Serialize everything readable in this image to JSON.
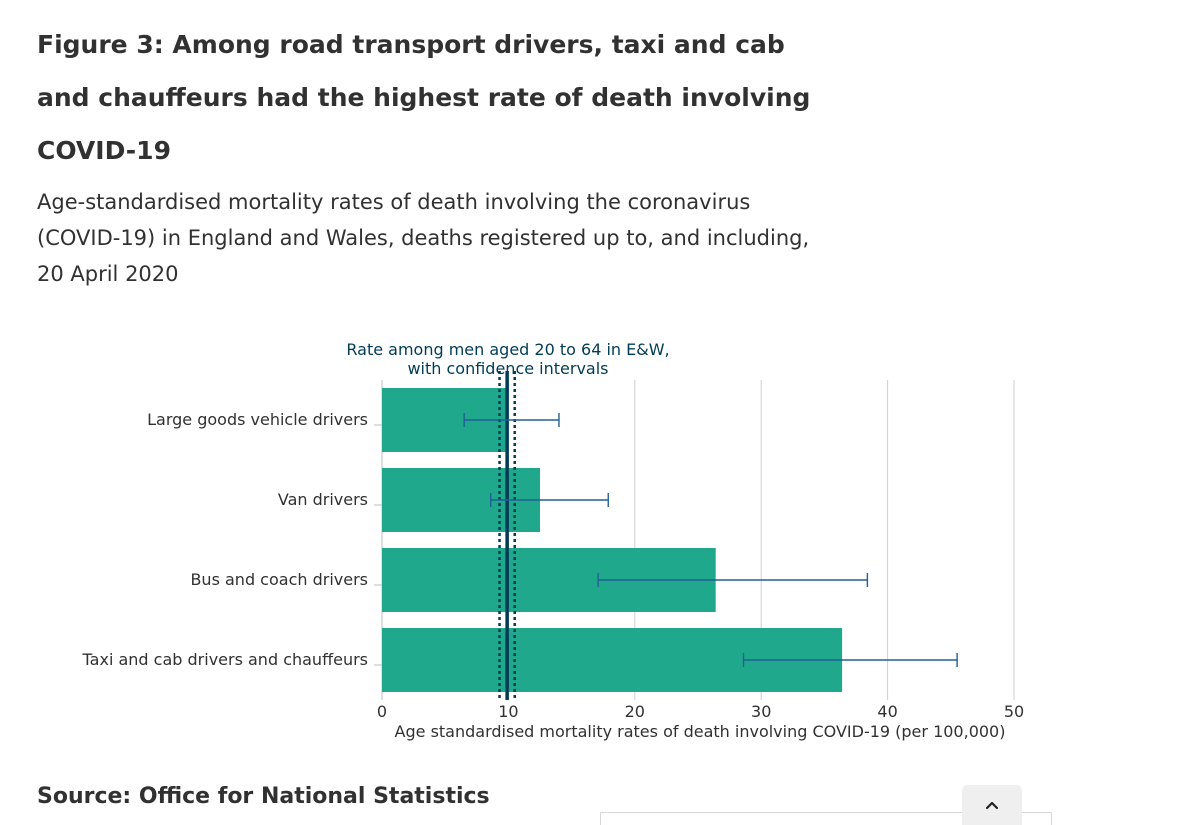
{
  "figure": {
    "title": "Figure 3: Among road transport drivers, taxi and cab and chauffeurs had the highest rate of death involving COVID-19",
    "subtitle": "Age-standardised mortality rates of death involving the coronavirus (COVID-19) in England and Wales, deaths registered up to, and including, 20 April 2020",
    "source": "Source: Office for National Statistics"
  },
  "chart_data": {
    "type": "bar",
    "orientation": "horizontal",
    "categories": [
      "Large goods vehicle drivers",
      "Van drivers",
      "Bus and coach drivers",
      "Taxi and cab drivers and chauffeurs"
    ],
    "values": [
      9.9,
      12.5,
      26.4,
      36.4
    ],
    "error_low": [
      6.5,
      8.6,
      17.1,
      28.6
    ],
    "error_high": [
      14.0,
      17.9,
      38.4,
      45.5
    ],
    "reference": {
      "label_line1": "Rate among men aged 20 to 64 in E&W,",
      "label_line2": "with confidence intervals",
      "value": 9.9,
      "ci_low": 9.3,
      "ci_high": 10.5
    },
    "xlabel": "Age standardised mortality rates of death involving COVID-19 (per 100,000)",
    "xticks": [
      "0",
      "10",
      "20",
      "30",
      "40",
      "50"
    ],
    "xlim": [
      0,
      50
    ],
    "grid": true,
    "colors": {
      "bar": "#1fa88b",
      "error": "#206095",
      "reference": "#003c57"
    }
  },
  "ui": {
    "scroll_top_icon": "chevron-up-icon"
  }
}
